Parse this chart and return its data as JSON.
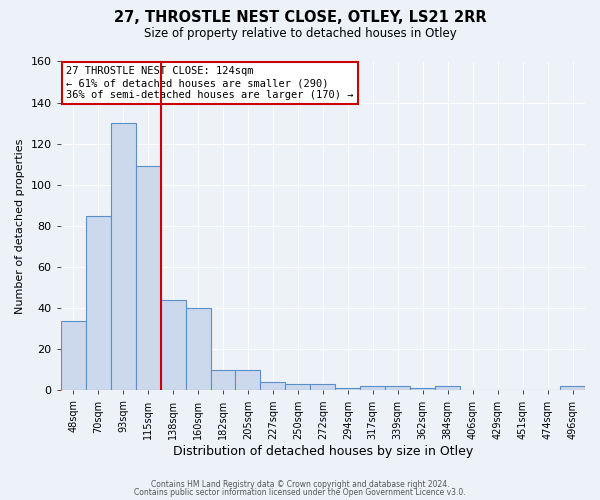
{
  "title_line1": "27, THROSTLE NEST CLOSE, OTLEY, LS21 2RR",
  "title_line2": "Size of property relative to detached houses in Otley",
  "xlabel": "Distribution of detached houses by size in Otley",
  "ylabel": "Number of detached properties",
  "bin_labels": [
    "48sqm",
    "70sqm",
    "93sqm",
    "115sqm",
    "138sqm",
    "160sqm",
    "182sqm",
    "205sqm",
    "227sqm",
    "250sqm",
    "272sqm",
    "294sqm",
    "317sqm",
    "339sqm",
    "362sqm",
    "384sqm",
    "406sqm",
    "429sqm",
    "451sqm",
    "474sqm",
    "496sqm"
  ],
  "bar_heights": [
    34,
    85,
    130,
    109,
    44,
    40,
    10,
    10,
    4,
    3,
    3,
    1,
    2,
    2,
    1,
    2,
    0,
    0,
    0,
    0,
    2
  ],
  "bar_color": "#ccd9ec",
  "bar_edge_color": "#5b8fc9",
  "vline_x": 3.5,
  "vline_color": "#cc0000",
  "annotation_text": "27 THROSTLE NEST CLOSE: 124sqm\n← 61% of detached houses are smaller (290)\n36% of semi-detached houses are larger (170) →",
  "annotation_box_color": "#ffffff",
  "annotation_box_edge": "#cc0000",
  "ylim": [
    0,
    160
  ],
  "yticks": [
    0,
    20,
    40,
    60,
    80,
    100,
    120,
    140,
    160
  ],
  "footer_line1": "Contains HM Land Registry data © Crown copyright and database right 2024.",
  "footer_line2": "Contains public sector information licensed under the Open Government Licence v3.0.",
  "background_color": "#edf2f9",
  "plot_bg_color": "#edf2f9"
}
